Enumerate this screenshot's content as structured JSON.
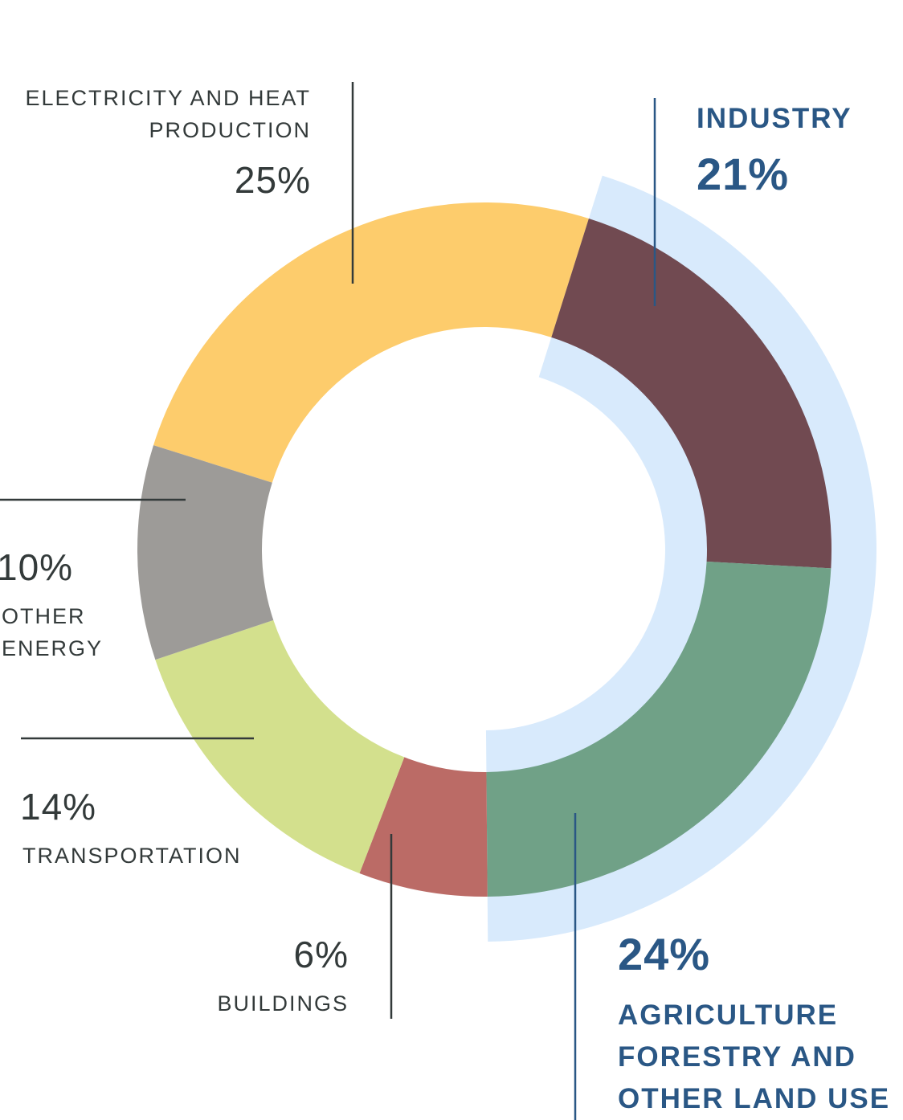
{
  "chart_data": {
    "type": "donut",
    "unit": "%",
    "slices": [
      {
        "label": "ELECTRICITY AND HEAT PRODUCTION",
        "value": 25,
        "value_label": "25%",
        "color": "#fdcc6c",
        "highlighted": false
      },
      {
        "label": "INDUSTRY",
        "value": 21,
        "value_label": "21%",
        "color": "#714a51",
        "highlighted": true
      },
      {
        "label": "AGRICULTURE FORESTRY AND OTHER LAND USE",
        "value": 24,
        "value_label": "24%",
        "color": "#70a187",
        "highlighted": true
      },
      {
        "label": "BUILDINGS",
        "value": 6,
        "value_label": "6%",
        "color": "#bb6b66",
        "highlighted": false
      },
      {
        "label": "TRANSPORTATION",
        "value": 14,
        "value_label": "14%",
        "color": "#d3e08d",
        "highlighted": false
      },
      {
        "label": "OTHER ENERGY",
        "value": 10,
        "value_label": "10%",
        "color": "#9d9b98",
        "highlighted": false
      }
    ],
    "highlight_color": "#d8eafc",
    "label_color": "#333a3a",
    "highlight_label_color": "#2a5785"
  },
  "labels": {
    "electricity": {
      "name_line1": "ELECTRICITY AND HEAT",
      "name_line2": "PRODUCTION",
      "pct": "25%"
    },
    "industry": {
      "name": "INDUSTRY",
      "pct": "21%"
    },
    "agriculture": {
      "pct": "24%",
      "name_line1": "AGRICULTURE",
      "name_line2": "FORESTRY AND",
      "name_line3": "OTHER LAND USE"
    },
    "buildings": {
      "pct": "6%",
      "name": "BUILDINGS"
    },
    "transportation": {
      "pct": "14%",
      "name": "TRANSPORTATION"
    },
    "other_energy": {
      "pct": "10%",
      "name_line1": "OTHER",
      "name_line2": "ENERGY"
    }
  }
}
